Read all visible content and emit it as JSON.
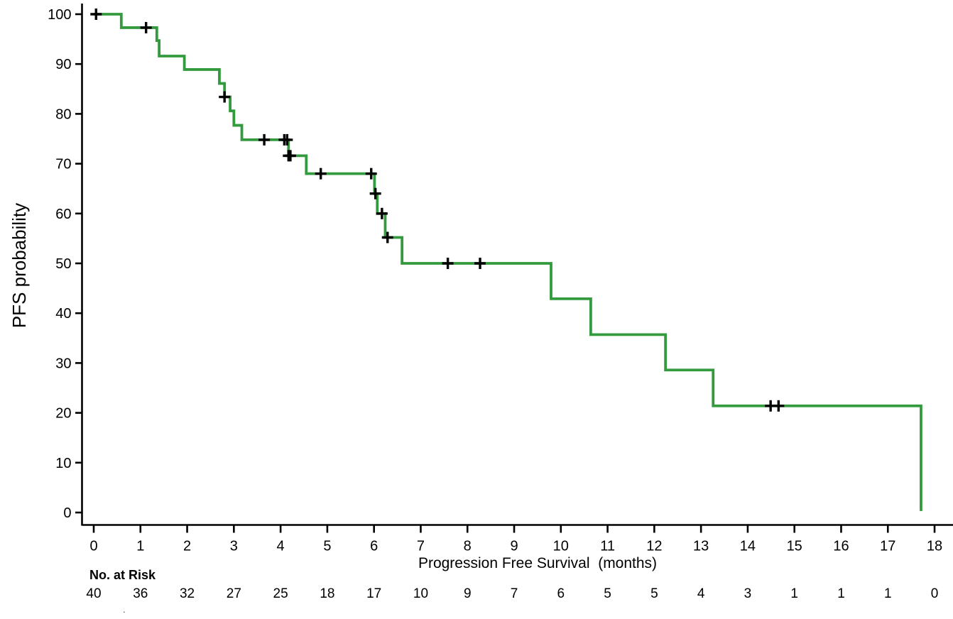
{
  "chart_data": {
    "type": "line",
    "subtype": "kaplan-meier-step",
    "title": "",
    "xlabel": "Progression Free Survival  (months)",
    "ylabel": "PFS probability",
    "xlim": [
      0,
      18.4
    ],
    "ylim": [
      0,
      100
    ],
    "x_ticks": [
      0,
      1,
      2,
      3,
      4,
      5,
      6,
      7,
      8,
      9,
      10,
      11,
      12,
      13,
      14,
      15,
      16,
      17,
      18
    ],
    "y_ticks": [
      0,
      10,
      20,
      30,
      40,
      50,
      60,
      70,
      80,
      90,
      100
    ],
    "grid": "off",
    "legend": "none",
    "series": [
      {
        "name": "PFS",
        "color": "#339a3d",
        "steps": [
          {
            "t": 0.0,
            "p": 100.0
          },
          {
            "t": 0.59,
            "p": 97.3
          },
          {
            "t": 1.35,
            "p": 94.7
          },
          {
            "t": 1.4,
            "p": 91.6
          },
          {
            "t": 1.94,
            "p": 88.9
          },
          {
            "t": 2.69,
            "p": 86.1
          },
          {
            "t": 2.8,
            "p": 83.4
          },
          {
            "t": 2.92,
            "p": 80.6
          },
          {
            "t": 3.0,
            "p": 77.7
          },
          {
            "t": 3.17,
            "p": 74.8
          },
          {
            "t": 4.17,
            "p": 71.6
          },
          {
            "t": 4.55,
            "p": 68.0
          },
          {
            "t": 6.01,
            "p": 64.0
          },
          {
            "t": 6.07,
            "p": 60.0
          },
          {
            "t": 6.24,
            "p": 55.2
          },
          {
            "t": 6.6,
            "p": 50.0
          },
          {
            "t": 9.79,
            "p": 42.9
          },
          {
            "t": 10.64,
            "p": 35.7
          },
          {
            "t": 12.24,
            "p": 28.6
          },
          {
            "t": 13.26,
            "p": 21.4
          },
          {
            "t": 17.71,
            "p": 0.3
          }
        ],
        "censor_marks": [
          {
            "t": 0.05,
            "p": 100.0
          },
          {
            "t": 1.12,
            "p": 97.3
          },
          {
            "t": 2.8,
            "p": 83.4
          },
          {
            "t": 3.65,
            "p": 74.8
          },
          {
            "t": 4.08,
            "p": 74.8
          },
          {
            "t": 4.14,
            "p": 74.8
          },
          {
            "t": 4.17,
            "p": 71.6
          },
          {
            "t": 4.21,
            "p": 71.6
          },
          {
            "t": 4.86,
            "p": 68.0
          },
          {
            "t": 5.94,
            "p": 68.0
          },
          {
            "t": 6.03,
            "p": 64.0
          },
          {
            "t": 6.17,
            "p": 60.0
          },
          {
            "t": 6.29,
            "p": 55.2
          },
          {
            "t": 7.58,
            "p": 50.0
          },
          {
            "t": 8.27,
            "p": 50.0
          },
          {
            "t": 14.49,
            "p": 21.4
          },
          {
            "t": 14.66,
            "p": 21.4
          }
        ]
      }
    ],
    "risk_table": {
      "label": "No. at Risk",
      "times": [
        0,
        1,
        2,
        3,
        4,
        5,
        6,
        7,
        8,
        9,
        10,
        11,
        12,
        13,
        14,
        15,
        16,
        17,
        18
      ],
      "counts": [
        40,
        36,
        32,
        27,
        25,
        18,
        17,
        10,
        9,
        7,
        6,
        5,
        5,
        4,
        3,
        1,
        1,
        1,
        0
      ]
    }
  },
  "colors": {
    "curve": "#339a3d",
    "axis": "#000000",
    "text": "#000000",
    "background": "#ffffff"
  },
  "misc": {
    "stray_dot": "."
  }
}
